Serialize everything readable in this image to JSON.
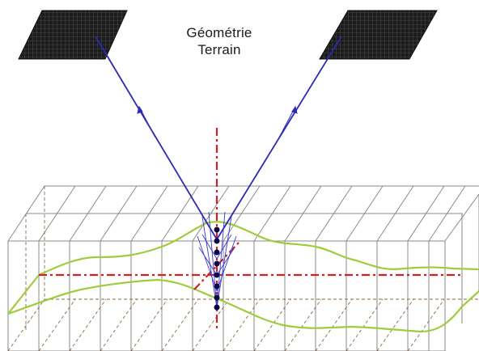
{
  "diagram": {
    "title_line_1": "Géométrie",
    "title_line_2": "Terrain",
    "colors": {
      "ray": "#2a2ab5",
      "axis": "#d42020",
      "terrain": "#9fcc3a",
      "grid_line": "#8a8a8a",
      "hidden_line": "#8a6a40",
      "sensor": "#1c1c1c",
      "voxel_point": "#0a0a4a"
    },
    "icons": [
      "sensor-image-left",
      "sensor-image-right",
      "voxel-grid",
      "terrain-surface",
      "sample-points"
    ]
  }
}
